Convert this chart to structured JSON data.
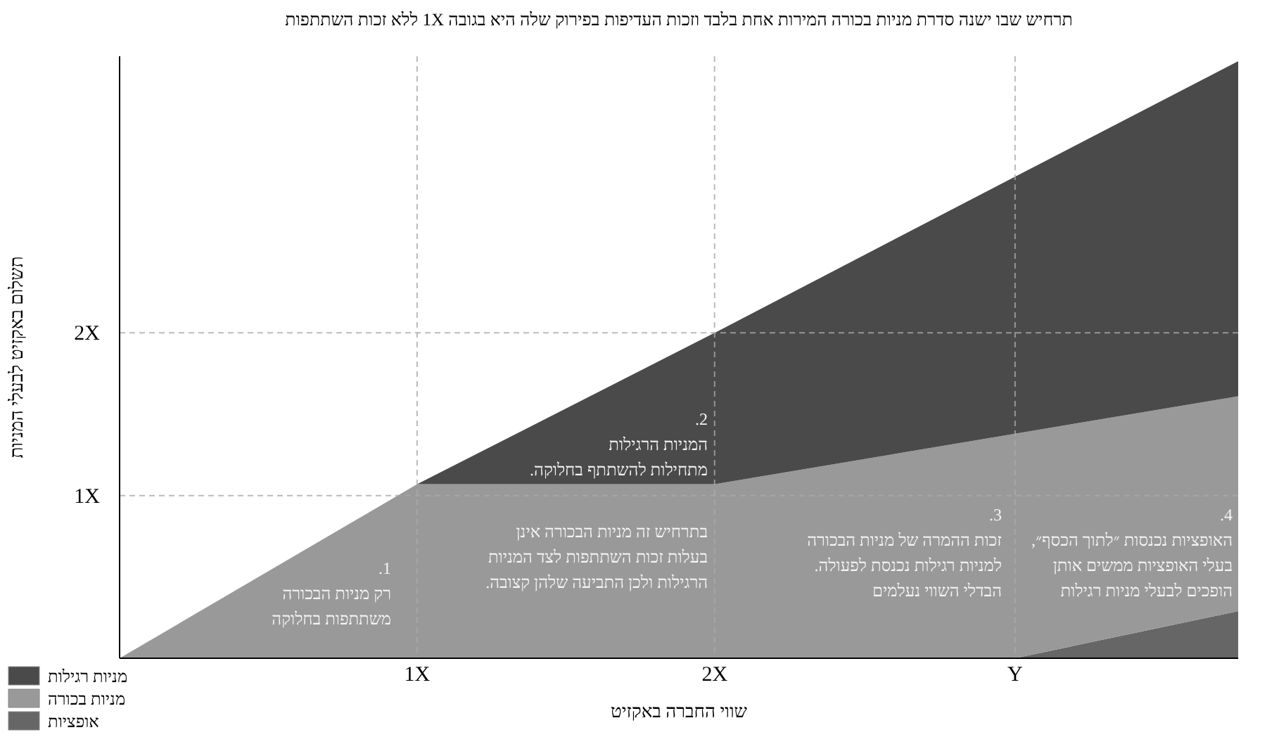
{
  "chart_data": {
    "type": "area",
    "stacked": true,
    "title": "תרחיש שבו ישנה סדרת מניות בכורה המירות אחת בלבד וזכות העדיפות בפירוק שלה היא בגובה 1X ללא זכות השתתפות",
    "xlabel": "שווי החברה באקזיט",
    "ylabel": "תשלום באקזיט לבעלי המניות",
    "x": [
      0,
      1,
      2,
      3.01,
      3.76
    ],
    "series": [
      {
        "name": "אופציות",
        "color": "#666666",
        "values": [
          0,
          0,
          0,
          0,
          0.29
        ]
      },
      {
        "name": "מניות בכורה",
        "color": "#999999",
        "values": [
          0,
          1.07,
          1.07,
          1.38,
          1.32
        ]
      },
      {
        "name": "מניות רגילות",
        "color": "#4a4a4a",
        "values": [
          0,
          0,
          0.93,
          1.58,
          2.06
        ]
      }
    ],
    "xlim": [
      0,
      3.76
    ],
    "ylim": [
      0,
      3.7
    ],
    "xticks": [
      {
        "value": 1,
        "label": "1X"
      },
      {
        "value": 2,
        "label": "2X"
      },
      {
        "value": 3.01,
        "label": "Y"
      }
    ],
    "yticks": [
      {
        "value": 1,
        "label": "1X"
      },
      {
        "value": 2,
        "label": "2X"
      }
    ],
    "grid": true,
    "legend": "bottom left",
    "annotations": [
      "1.\nרק מניות הבכורה\nמשתתפות בחלוקה",
      "בתרחיש זה מניות הבכורה אינן\nבעלות זכות השתתפות לצד המניות\nהרגילות ולכן התביעה שלהן קצובה.",
      "2.\nהמניות הרגילות\nמתחילות להשתתף בחלוקה.",
      "3.\nזכות ההמרה של מניות הבכורה\nלמניות רגילות נכנסת לפעולה.\nהבדלי השווי נעלמים",
      "4.\nהאופציות נכנסות ״לתוך הכסף״,\nבעלי האופציות ממשים אותן\nהופכים לבעלי מניות רגילות"
    ]
  }
}
